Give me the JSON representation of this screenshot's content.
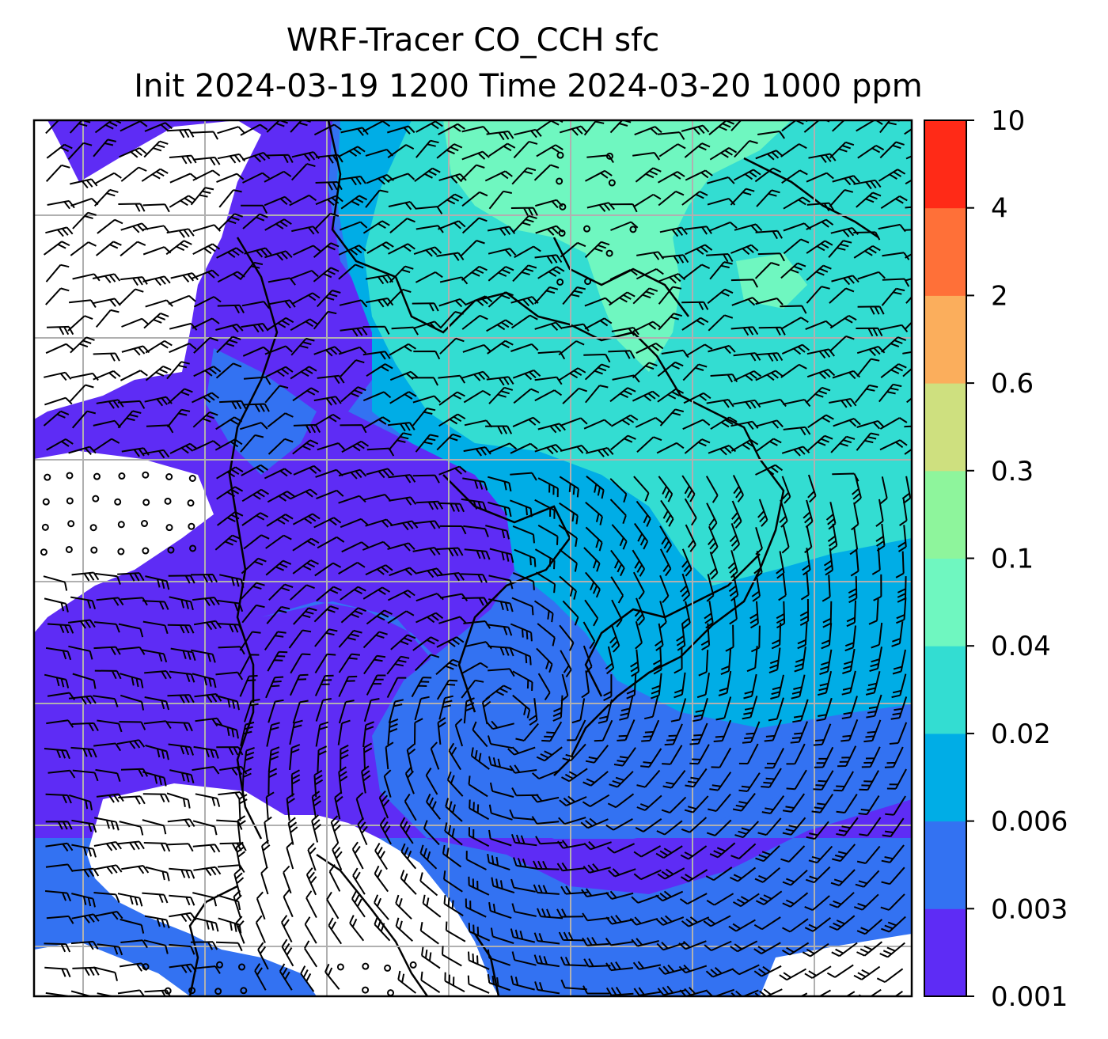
{
  "title": {
    "line1": "WRF-Tracer CO_CCH sfc",
    "line2": "Init 2024-03-19 1200 Time 2024-03-20 1000 ppm"
  },
  "colorbar": {
    "levels": [
      "0.001",
      "0.003",
      "0.006",
      "0.02",
      "0.04",
      "0.1",
      "0.3",
      "0.6",
      "2",
      "4",
      "10"
    ],
    "colors": [
      "#5e2cf5",
      "#3372f2",
      "#00ade6",
      "#33ddd2",
      "#6ff7c0",
      "#8ef59c",
      "#cee07f",
      "#fbae5c",
      "#ff7038",
      "#ff2a17"
    ]
  },
  "map": {
    "background": "#ffffff",
    "grid_color": "#b0b0b0",
    "coastline_color": "#000000",
    "barb_color": "#000000"
  }
}
